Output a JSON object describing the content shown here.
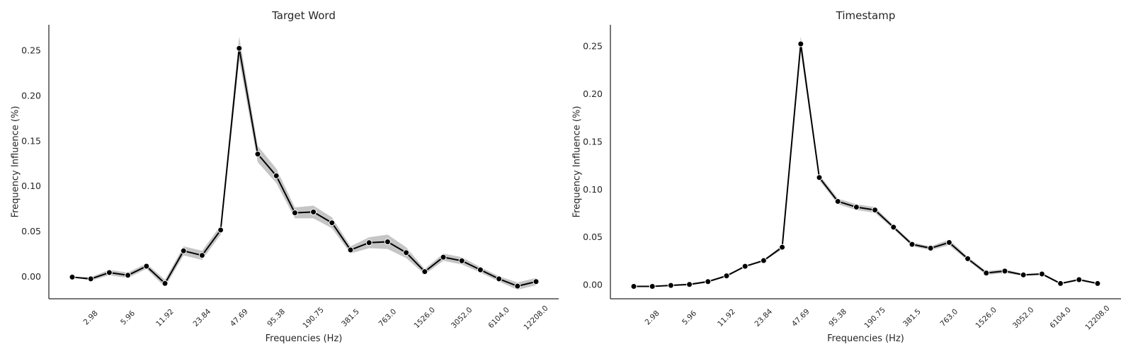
{
  "colors": {
    "line": "#000000",
    "band": "#8c8c8c",
    "axis": "#262626",
    "background": "#ffffff"
  },
  "chart_data": [
    {
      "type": "line",
      "title": "Target Word",
      "xlabel": "Frequencies (Hz)",
      "ylabel": "Frequency Influence (%)",
      "x_tick_labels": [
        "2.98",
        "5.96",
        "11.92",
        "23.84",
        "47.69",
        "95.38",
        "190.75",
        "381.5",
        "763.0",
        "1526.0",
        "3052.0",
        "6104.0",
        "12208.0"
      ],
      "y_ticks": [
        0.0,
        0.05,
        0.1,
        0.15,
        0.2,
        0.25
      ],
      "y_tick_labels": [
        "0.00",
        "0.05",
        "0.10",
        "0.15",
        "0.20",
        "0.25"
      ],
      "ylim": [
        -0.024,
        0.279
      ],
      "grid": false,
      "confidence_band": true,
      "series": [
        {
          "values": [
            0.0,
            -0.002,
            0.005,
            0.002,
            0.012,
            -0.007,
            0.029,
            0.024,
            0.052,
            0.253,
            0.136,
            0.112,
            0.071,
            0.072,
            0.06,
            0.03,
            0.038,
            0.039,
            0.027,
            0.006,
            0.022,
            0.018,
            0.008,
            -0.002,
            -0.01,
            -0.005
          ],
          "lower": [
            0.0,
            -0.004,
            0.002,
            -0.001,
            0.009,
            -0.011,
            0.024,
            0.019,
            0.047,
            0.24,
            0.127,
            0.104,
            0.065,
            0.065,
            0.054,
            0.026,
            0.032,
            0.031,
            0.021,
            0.003,
            0.018,
            0.014,
            0.005,
            -0.005,
            -0.014,
            -0.009
          ],
          "upper": [
            0.0,
            0.0,
            0.008,
            0.005,
            0.015,
            -0.003,
            0.034,
            0.029,
            0.057,
            0.266,
            0.145,
            0.12,
            0.077,
            0.079,
            0.066,
            0.034,
            0.044,
            0.047,
            0.033,
            0.009,
            0.026,
            0.022,
            0.011,
            0.001,
            -0.006,
            -0.001
          ]
        }
      ]
    },
    {
      "type": "line",
      "title": "Timestamp",
      "xlabel": "Frequencies (Hz)",
      "ylabel": "Frequency Influence (%)",
      "x_tick_labels": [
        "2.98",
        "5.96",
        "11.92",
        "23.84",
        "47.69",
        "95.38",
        "190.75",
        "381.5",
        "763.0",
        "1526.0",
        "3052.0",
        "6104.0",
        "12208.0"
      ],
      "y_ticks": [
        0.0,
        0.05,
        0.1,
        0.15,
        0.2,
        0.25
      ],
      "y_tick_labels": [
        "0.00",
        "0.05",
        "0.10",
        "0.15",
        "0.20",
        "0.25"
      ],
      "ylim": [
        -0.014,
        0.273
      ],
      "grid": false,
      "confidence_band": true,
      "series": [
        {
          "values": [
            -0.001,
            -0.001,
            0.0,
            0.001,
            0.004,
            0.01,
            0.02,
            0.026,
            0.04,
            0.253,
            0.113,
            0.088,
            0.082,
            0.079,
            0.061,
            0.043,
            0.039,
            0.045,
            0.028,
            0.013,
            0.015,
            0.011,
            0.012,
            0.002,
            0.006,
            0.002
          ],
          "lower": [
            -0.001,
            -0.001,
            0.0,
            0.0,
            0.003,
            0.009,
            0.019,
            0.025,
            0.038,
            0.245,
            0.11,
            0.085,
            0.079,
            0.076,
            0.059,
            0.041,
            0.037,
            0.042,
            0.026,
            0.011,
            0.013,
            0.01,
            0.011,
            0.001,
            0.005,
            0.001
          ],
          "upper": [
            -0.001,
            -0.001,
            0.001,
            0.002,
            0.005,
            0.011,
            0.021,
            0.027,
            0.042,
            0.261,
            0.116,
            0.091,
            0.085,
            0.082,
            0.063,
            0.045,
            0.041,
            0.048,
            0.03,
            0.015,
            0.017,
            0.012,
            0.013,
            0.003,
            0.007,
            0.003
          ]
        }
      ]
    }
  ]
}
